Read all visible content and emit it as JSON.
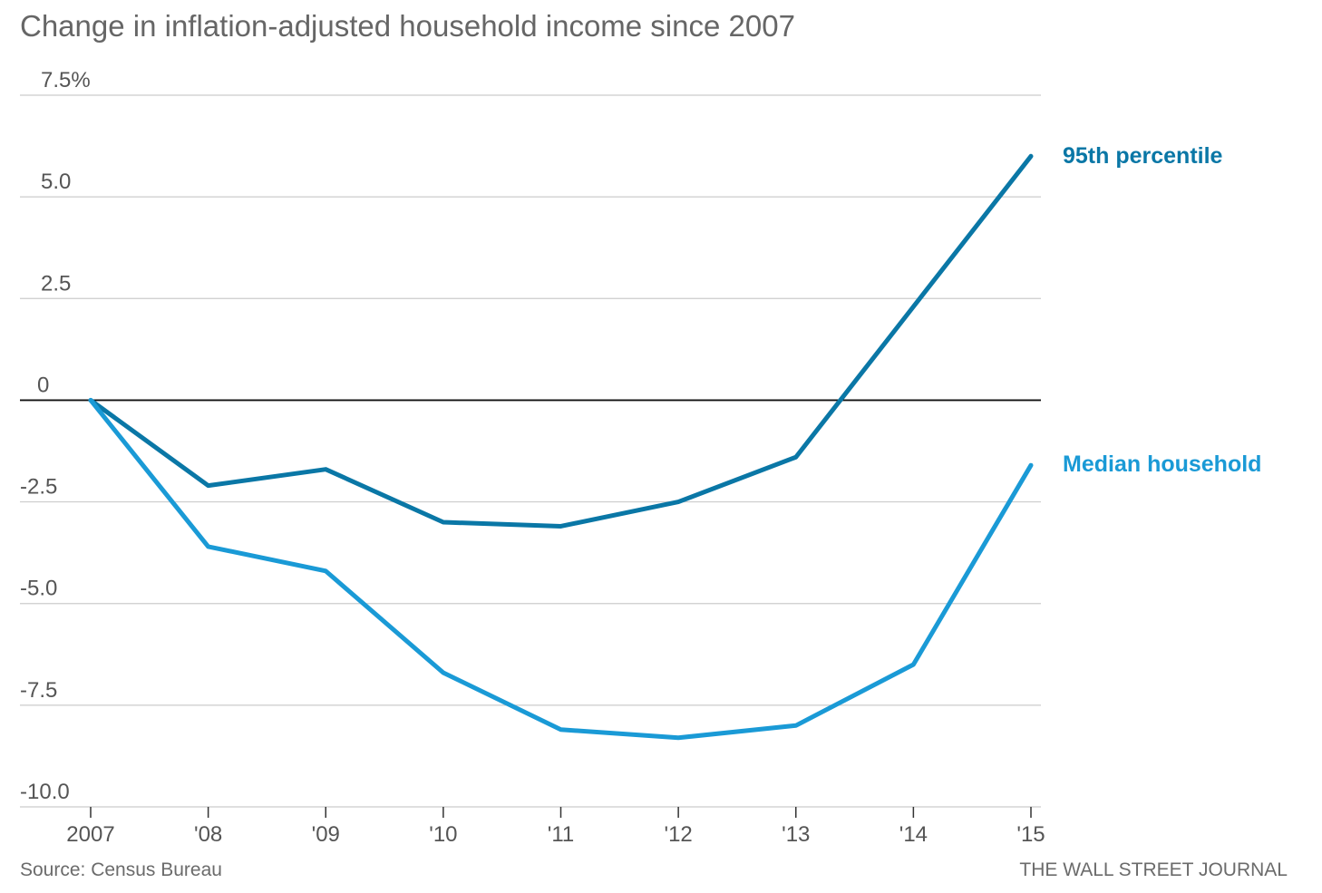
{
  "chart_data": {
    "type": "line",
    "title": "Change in inflation-adjusted household income since 2007",
    "xlabel": "",
    "ylabel": "",
    "categories": [
      "2007",
      "'08",
      "'09",
      "'10",
      "'11",
      "'12",
      "'13",
      "'14",
      "'15"
    ],
    "y_ticks": [
      {
        "value": 7.5,
        "label": "7.5%"
      },
      {
        "value": 5.0,
        "label": "5.0"
      },
      {
        "value": 2.5,
        "label": "2.5"
      },
      {
        "value": 0,
        "label": "0"
      },
      {
        "value": -2.5,
        "label": "-2.5"
      },
      {
        "value": -5.0,
        "label": "-5.0"
      },
      {
        "value": -7.5,
        "label": "-7.5"
      },
      {
        "value": -10.0,
        "label": "-10.0"
      }
    ],
    "ylim": [
      -10,
      7.5
    ],
    "grid": true,
    "legend": "direct labels at right end of lines",
    "series": [
      {
        "name": "95th percentile",
        "color": "#0a77a6",
        "values": [
          0,
          -2.1,
          -1.7,
          -3.0,
          -3.1,
          -2.5,
          -1.4,
          2.3,
          6.0
        ]
      },
      {
        "name": "Median household",
        "color": "#1a9ad6",
        "values": [
          0,
          -3.6,
          -4.2,
          -6.7,
          -8.1,
          -8.3,
          -8.0,
          -6.5,
          -1.6
        ]
      }
    ]
  },
  "footer": {
    "source": "Source: Census Bureau",
    "credit": "THE WALL STREET JOURNAL"
  }
}
